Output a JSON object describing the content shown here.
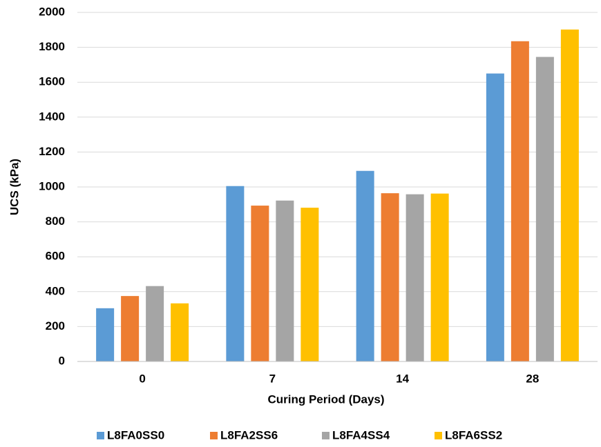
{
  "chart_data": {
    "type": "bar",
    "x_label": "Curing Period (Days)",
    "y_label": "UCS (kPa)",
    "categories": [
      "0",
      "7",
      "14",
      "28"
    ],
    "series": [
      {
        "name": "L8FA0SS0",
        "color": "#5b9bd5",
        "values": [
          305,
          1005,
          1092,
          1650
        ]
      },
      {
        "name": "L8FA2SS6",
        "color": "#ed7d31",
        "values": [
          375,
          893,
          964,
          1835
        ]
      },
      {
        "name": "L8FA4SS4",
        "color": "#a5a5a5",
        "values": [
          432,
          922,
          958,
          1745
        ]
      },
      {
        "name": "L8FA6SS2",
        "color": "#ffc000",
        "values": [
          333,
          881,
          962,
          1902
        ]
      }
    ],
    "ylim": [
      0,
      2000
    ],
    "yticks": [
      0,
      200,
      400,
      600,
      800,
      1000,
      1200,
      1400,
      1600,
      1800,
      2000
    ],
    "grid": true,
    "legend": "bottom"
  }
}
